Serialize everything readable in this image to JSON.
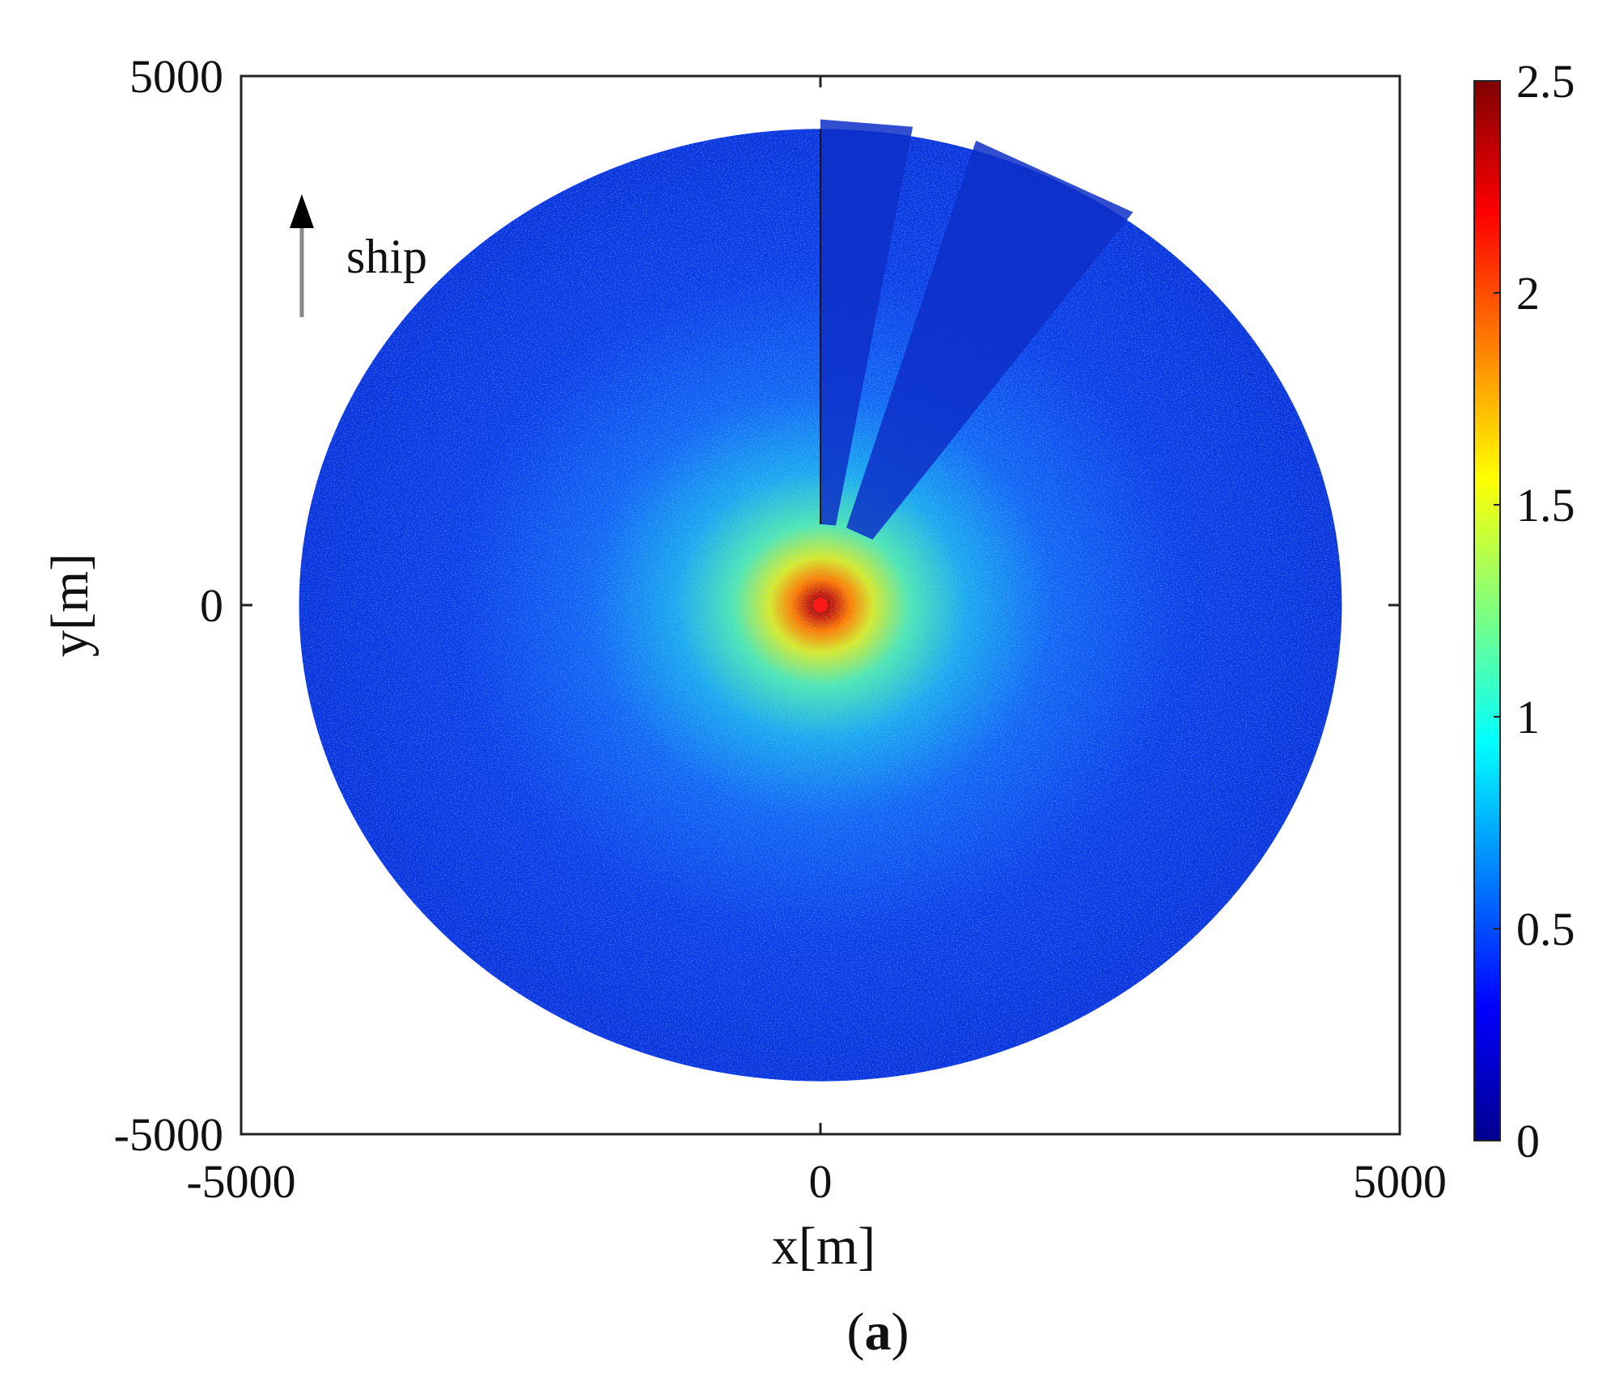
{
  "chart_data": {
    "type": "heatmap",
    "title": "",
    "xlabel": "x[m]",
    "ylabel": "y[m]",
    "xlim": [
      -5000,
      5000
    ],
    "ylim": [
      -5000,
      5000
    ],
    "xticks": [
      -5000,
      0,
      5000
    ],
    "yticks": [
      -5000,
      0,
      5000
    ],
    "colorbar": {
      "range": [
        0,
        2.5
      ],
      "ticks": [
        0,
        0.5,
        1,
        1.5,
        2,
        2.5
      ],
      "tick_labels": [
        "0",
        "0.5",
        "1",
        "1.5",
        "2",
        "2.5"
      ],
      "colormap": "jet"
    },
    "grid": false,
    "coverage": {
      "shape": "disc",
      "center_m": [
        0,
        0
      ],
      "radius_m": 4500,
      "background_level": 0.3,
      "center_peak_level": 2.5
    },
    "shadow_sectors": [
      {
        "from_deg_cw_north": 0,
        "to_deg_cw_north": 10
      },
      {
        "from_deg_cw_north": 17,
        "to_deg_cw_north": 36
      }
    ],
    "annotation": {
      "text": "ship",
      "arrow_direction": "up"
    },
    "panel_label": {
      "open": "(",
      "letter": "a",
      "close": ")"
    }
  }
}
